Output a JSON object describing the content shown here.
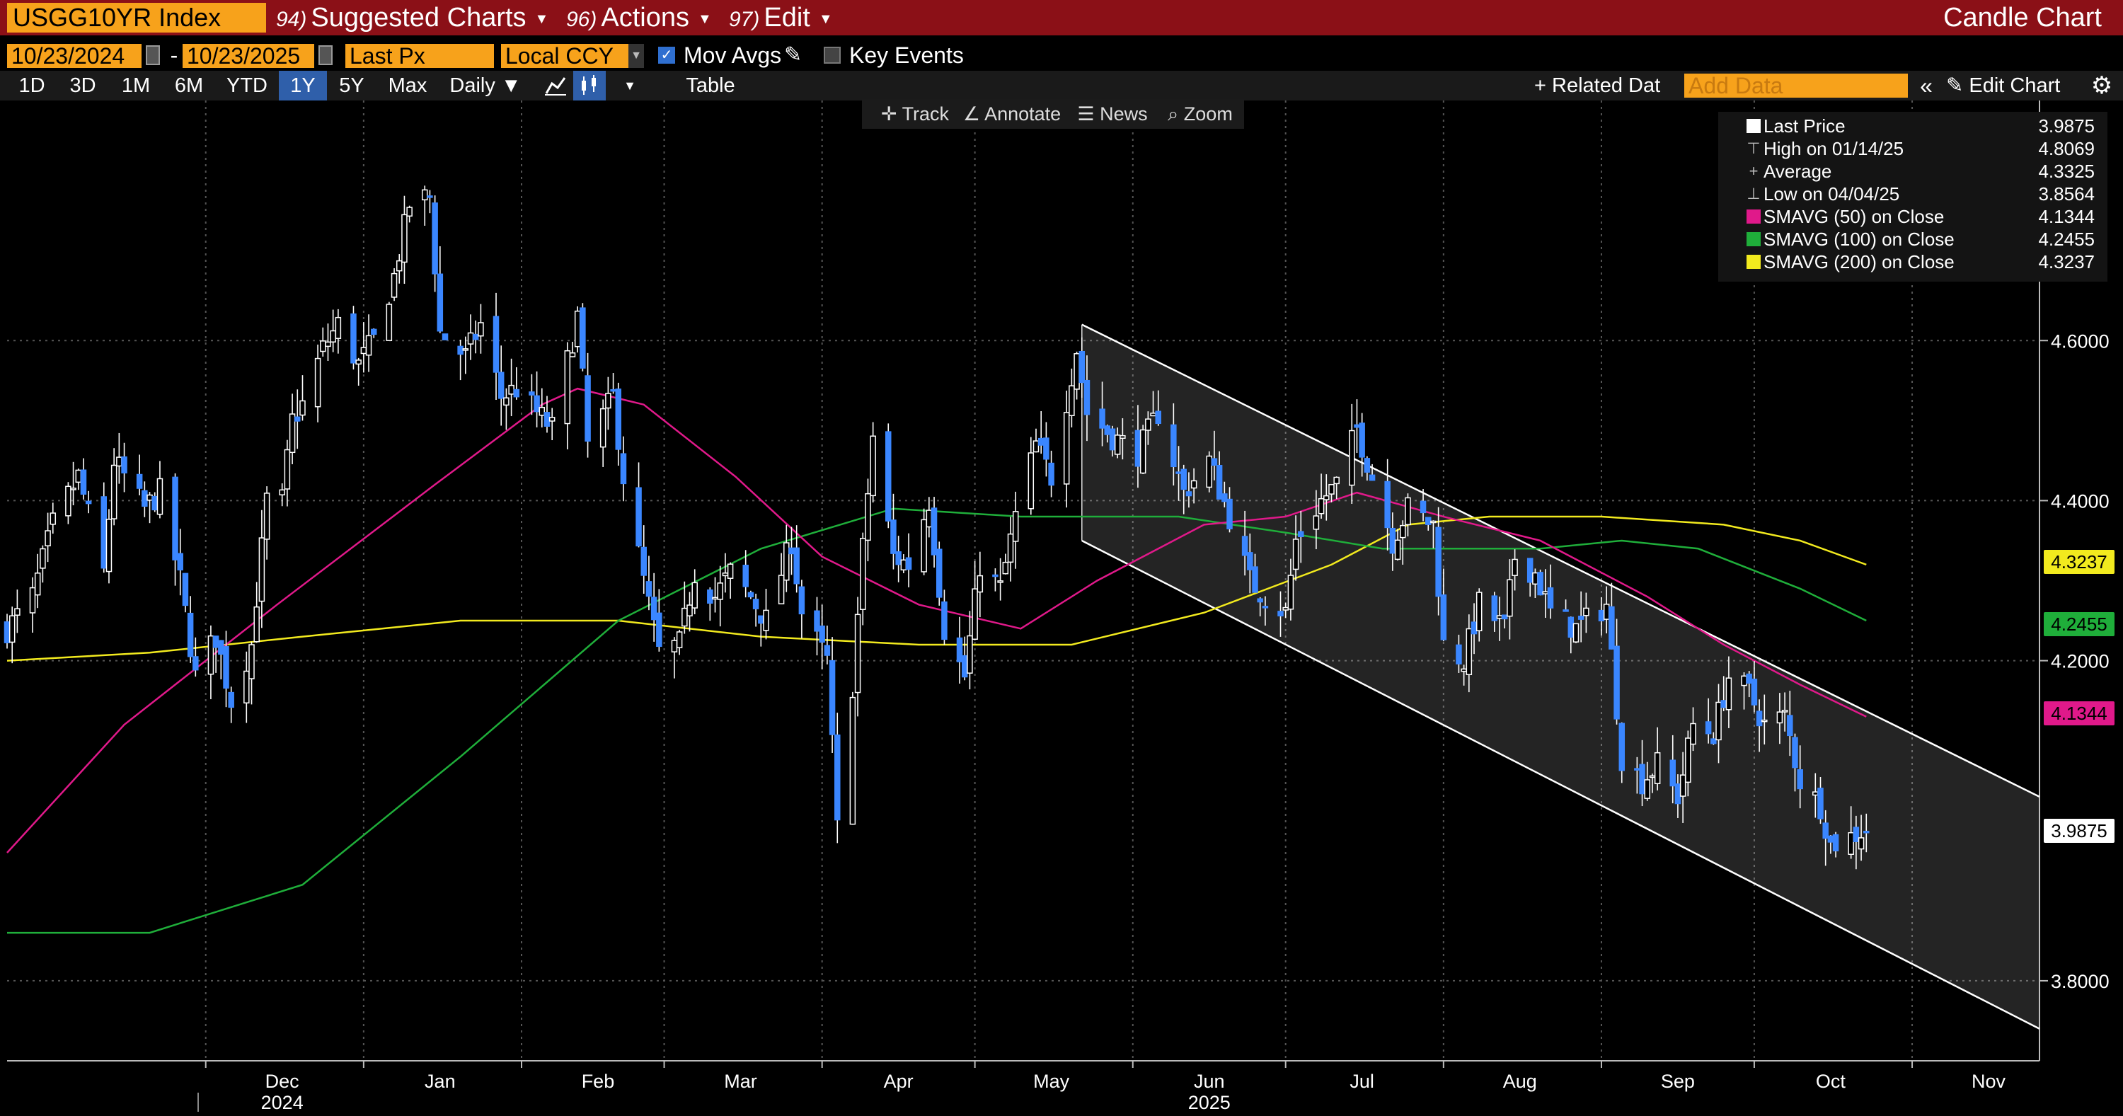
{
  "topbar": {
    "ticker": "USGG10YR Index",
    "menus": [
      {
        "num": "94)",
        "label": "Suggested Charts"
      },
      {
        "num": "96)",
        "label": "Actions"
      },
      {
        "num": "97)",
        "label": "Edit"
      }
    ],
    "right_title": "Candle Chart"
  },
  "controls": {
    "start_date": "10/23/2024",
    "end_date": "10/23/2025",
    "separator": "-",
    "field": "Last Px",
    "currency": "Local CCY",
    "mov_avgs_label": "Mov Avgs",
    "mov_avgs_checked": true,
    "key_events_label": "Key Events",
    "key_events_checked": false
  },
  "toolbar": {
    "ranges": [
      "1D",
      "3D",
      "1M",
      "6M",
      "YTD",
      "1Y",
      "5Y",
      "Max"
    ],
    "active_range": "1Y",
    "frequency": "Daily",
    "table_label": "Table",
    "related_label": "Related Dat",
    "add_data_placeholder": "Add Data",
    "edit_chart_label": "Edit Chart"
  },
  "chart_tools": [
    "Track",
    "Annotate",
    "News",
    "Zoom"
  ],
  "legend": [
    {
      "name": "Last Price",
      "value": "3.9875",
      "color": "#ffffff"
    },
    {
      "name": "High on 01/14/25",
      "value": "4.8069",
      "color": "#bbbbbb"
    },
    {
      "name": "Average",
      "value": "4.3325",
      "color": "#bbbbbb"
    },
    {
      "name": "Low on 04/04/25",
      "value": "3.8564",
      "color": "#bbbbbb"
    },
    {
      "name": "SMAVG (50)  on Close",
      "value": "4.1344",
      "color": "#e0198a"
    },
    {
      "name": "SMAVG (100)  on Close",
      "value": "4.2455",
      "color": "#1fae3a"
    },
    {
      "name": "SMAVG (200)  on Close",
      "value": "4.3237",
      "color": "#f2ea1e"
    }
  ],
  "price_tags": [
    {
      "label": "4.3237",
      "value": 4.3237,
      "color": "#f2ea1e"
    },
    {
      "label": "4.2455",
      "value": 4.2455,
      "color": "#1fae3a"
    },
    {
      "label": "4.1344",
      "value": 4.1344,
      "color": "#e0198a"
    },
    {
      "label": "3.9875",
      "value": 3.9875,
      "color": "#ffffff"
    }
  ],
  "chart_data": {
    "type": "candlestick",
    "ylim": [
      3.7,
      4.9
    ],
    "y_ticks": [
      {
        "value": 4.6,
        "label": "4.6000"
      },
      {
        "value": 4.4,
        "label": "4.4000"
      },
      {
        "value": 4.2,
        "label": "4.2000"
      },
      {
        "value": 3.8,
        "label": "3.8000"
      }
    ],
    "x_months": [
      {
        "label": "Dec",
        "date": "2024-12-01"
      },
      {
        "label": "Jan",
        "date": "2025-01-01"
      },
      {
        "label": "Feb",
        "date": "2025-02-01"
      },
      {
        "label": "Mar",
        "date": "2025-03-01"
      },
      {
        "label": "Apr",
        "date": "2025-04-01"
      },
      {
        "label": "May",
        "date": "2025-05-01"
      },
      {
        "label": "Jun",
        "date": "2025-06-01"
      },
      {
        "label": "Jul",
        "date": "2025-07-01"
      },
      {
        "label": "Aug",
        "date": "2025-08-01"
      },
      {
        "label": "Sep",
        "date": "2025-09-01"
      },
      {
        "label": "Oct",
        "date": "2025-10-01"
      },
      {
        "label": "Nov",
        "date": "2025-11-01"
      }
    ],
    "x_years": [
      {
        "label": "2024",
        "date": "2024-12-01"
      },
      {
        "label": "2025",
        "date": "2025-06-01"
      }
    ],
    "xlim": [
      "2024-10-23",
      "2025-11-26"
    ],
    "close_path": [
      [
        "2024-10-23",
        4.24
      ],
      [
        "2024-10-28",
        4.28
      ],
      [
        "2024-11-01",
        4.37
      ],
      [
        "2024-11-06",
        4.43
      ],
      [
        "2024-11-11",
        4.31
      ],
      [
        "2024-11-13",
        4.45
      ],
      [
        "2024-11-15",
        4.43
      ],
      [
        "2024-11-19",
        4.39
      ],
      [
        "2024-11-22",
        4.41
      ],
      [
        "2024-11-26",
        4.3
      ],
      [
        "2024-11-29",
        4.18
      ],
      [
        "2024-12-03",
        4.23
      ],
      [
        "2024-12-06",
        4.15
      ],
      [
        "2024-12-10",
        4.22
      ],
      [
        "2024-12-13",
        4.4
      ],
      [
        "2024-12-16",
        4.4
      ],
      [
        "2024-12-18",
        4.5
      ],
      [
        "2024-12-20",
        4.52
      ],
      [
        "2024-12-24",
        4.59
      ],
      [
        "2024-12-27",
        4.62
      ],
      [
        "2024-12-31",
        4.57
      ],
      [
        "2025-01-03",
        4.6
      ],
      [
        "2025-01-07",
        4.68
      ],
      [
        "2025-01-10",
        4.77
      ],
      [
        "2025-01-14",
        4.78
      ],
      [
        "2025-01-16",
        4.61
      ],
      [
        "2025-01-21",
        4.58
      ],
      [
        "2025-01-24",
        4.62
      ],
      [
        "2025-01-28",
        4.53
      ],
      [
        "2025-01-31",
        4.54
      ],
      [
        "2025-02-04",
        4.51
      ],
      [
        "2025-02-07",
        4.49
      ],
      [
        "2025-02-12",
        4.63
      ],
      [
        "2025-02-14",
        4.47
      ],
      [
        "2025-02-19",
        4.53
      ],
      [
        "2025-02-21",
        4.43
      ],
      [
        "2025-02-25",
        4.3
      ],
      [
        "2025-02-28",
        4.21
      ],
      [
        "2025-03-04",
        4.22
      ],
      [
        "2025-03-07",
        4.31
      ],
      [
        "2025-03-11",
        4.28
      ],
      [
        "2025-03-14",
        4.31
      ],
      [
        "2025-03-18",
        4.28
      ],
      [
        "2025-03-21",
        4.25
      ],
      [
        "2025-03-26",
        4.35
      ],
      [
        "2025-03-28",
        4.26
      ],
      [
        "2025-04-02",
        4.2
      ],
      [
        "2025-04-04",
        3.99
      ],
      [
        "2025-04-07",
        4.17
      ],
      [
        "2025-04-09",
        4.34
      ],
      [
        "2025-04-11",
        4.48
      ],
      [
        "2025-04-15",
        4.33
      ],
      [
        "2025-04-18",
        4.32
      ],
      [
        "2025-04-22",
        4.4
      ],
      [
        "2025-04-25",
        4.24
      ],
      [
        "2025-04-29",
        4.18
      ],
      [
        "2025-05-02",
        4.32
      ],
      [
        "2025-05-06",
        4.29
      ],
      [
        "2025-05-09",
        4.38
      ],
      [
        "2025-05-13",
        4.47
      ],
      [
        "2025-05-16",
        4.43
      ],
      [
        "2025-05-21",
        4.59
      ],
      [
        "2025-05-23",
        4.51
      ],
      [
        "2025-05-28",
        4.48
      ],
      [
        "2025-06-02",
        4.46
      ],
      [
        "2025-06-06",
        4.51
      ],
      [
        "2025-06-11",
        4.41
      ],
      [
        "2025-06-16",
        4.45
      ],
      [
        "2025-06-20",
        4.38
      ],
      [
        "2025-06-24",
        4.3
      ],
      [
        "2025-06-27",
        4.28
      ],
      [
        "2025-07-01",
        4.26
      ],
      [
        "2025-07-03",
        4.35
      ],
      [
        "2025-07-08",
        4.4
      ],
      [
        "2025-07-11",
        4.42
      ],
      [
        "2025-07-15",
        4.49
      ],
      [
        "2025-07-18",
        4.43
      ],
      [
        "2025-07-22",
        4.35
      ],
      [
        "2025-07-25",
        4.39
      ],
      [
        "2025-07-30",
        4.37
      ],
      [
        "2025-08-01",
        4.22
      ],
      [
        "2025-08-05",
        4.2
      ],
      [
        "2025-08-08",
        4.27
      ],
      [
        "2025-08-13",
        4.24
      ],
      [
        "2025-08-15",
        4.33
      ],
      [
        "2025-08-19",
        4.31
      ],
      [
        "2025-08-22",
        4.26
      ],
      [
        "2025-08-27",
        4.24
      ],
      [
        "2025-09-02",
        4.27
      ],
      [
        "2025-09-05",
        4.08
      ],
      [
        "2025-09-09",
        4.05
      ],
      [
        "2025-09-12",
        4.07
      ],
      [
        "2025-09-16",
        4.03
      ],
      [
        "2025-09-19",
        4.12
      ],
      [
        "2025-09-23",
        4.11
      ],
      [
        "2025-09-26",
        4.18
      ],
      [
        "2025-09-30",
        4.16
      ],
      [
        "2025-10-03",
        4.12
      ],
      [
        "2025-10-07",
        4.13
      ],
      [
        "2025-10-10",
        4.05
      ],
      [
        "2025-10-14",
        4.02
      ],
      [
        "2025-10-16",
        3.97
      ],
      [
        "2025-10-20",
        3.98
      ],
      [
        "2025-10-23",
        3.99
      ]
    ],
    "sma50": [
      [
        "2024-10-23",
        3.96
      ],
      [
        "2024-11-15",
        4.12
      ],
      [
        "2024-12-15",
        4.27
      ],
      [
        "2025-01-15",
        4.42
      ],
      [
        "2025-02-05",
        4.52
      ],
      [
        "2025-02-12",
        4.54
      ],
      [
        "2025-02-25",
        4.52
      ],
      [
        "2025-03-15",
        4.43
      ],
      [
        "2025-04-01",
        4.33
      ],
      [
        "2025-04-20",
        4.27
      ],
      [
        "2025-05-10",
        4.24
      ],
      [
        "2025-05-25",
        4.3
      ],
      [
        "2025-06-15",
        4.37
      ],
      [
        "2025-07-01",
        4.38
      ],
      [
        "2025-07-15",
        4.41
      ],
      [
        "2025-08-01",
        4.38
      ],
      [
        "2025-08-20",
        4.35
      ],
      [
        "2025-09-10",
        4.28
      ],
      [
        "2025-09-25",
        4.22
      ],
      [
        "2025-10-10",
        4.17
      ],
      [
        "2025-10-23",
        4.13
      ]
    ],
    "sma100": [
      [
        "2024-10-23",
        3.86
      ],
      [
        "2024-11-20",
        3.86
      ],
      [
        "2024-12-20",
        3.92
      ],
      [
        "2025-01-20",
        4.08
      ],
      [
        "2025-02-20",
        4.25
      ],
      [
        "2025-03-20",
        4.34
      ],
      [
        "2025-04-15",
        4.39
      ],
      [
        "2025-05-10",
        4.38
      ],
      [
        "2025-06-10",
        4.38
      ],
      [
        "2025-07-01",
        4.36
      ],
      [
        "2025-07-20",
        4.34
      ],
      [
        "2025-08-20",
        4.34
      ],
      [
        "2025-09-05",
        4.35
      ],
      [
        "2025-09-20",
        4.34
      ],
      [
        "2025-10-10",
        4.29
      ],
      [
        "2025-10-23",
        4.25
      ]
    ],
    "sma200": [
      [
        "2024-10-23",
        4.2
      ],
      [
        "2024-11-20",
        4.21
      ],
      [
        "2024-12-20",
        4.23
      ],
      [
        "2025-01-20",
        4.25
      ],
      [
        "2025-02-20",
        4.25
      ],
      [
        "2025-03-20",
        4.23
      ],
      [
        "2025-04-20",
        4.22
      ],
      [
        "2025-05-20",
        4.22
      ],
      [
        "2025-06-15",
        4.26
      ],
      [
        "2025-07-10",
        4.32
      ],
      [
        "2025-07-25",
        4.37
      ],
      [
        "2025-08-10",
        4.38
      ],
      [
        "2025-09-01",
        4.38
      ],
      [
        "2025-09-25",
        4.37
      ],
      [
        "2025-10-10",
        4.35
      ],
      [
        "2025-10-23",
        4.32
      ]
    ],
    "channel": {
      "upper": [
        [
          "2025-05-22",
          4.62
        ],
        [
          "2025-11-26",
          4.03
        ]
      ],
      "lower": [
        [
          "2025-05-22",
          4.35
        ],
        [
          "2025-11-26",
          3.74
        ]
      ]
    },
    "colors": {
      "up": "#ffffff",
      "down": "#3a86ff",
      "sma50": "#e0198a",
      "sma100": "#1fae3a",
      "sma200": "#f2ea1e",
      "grid": "#555555"
    }
  }
}
